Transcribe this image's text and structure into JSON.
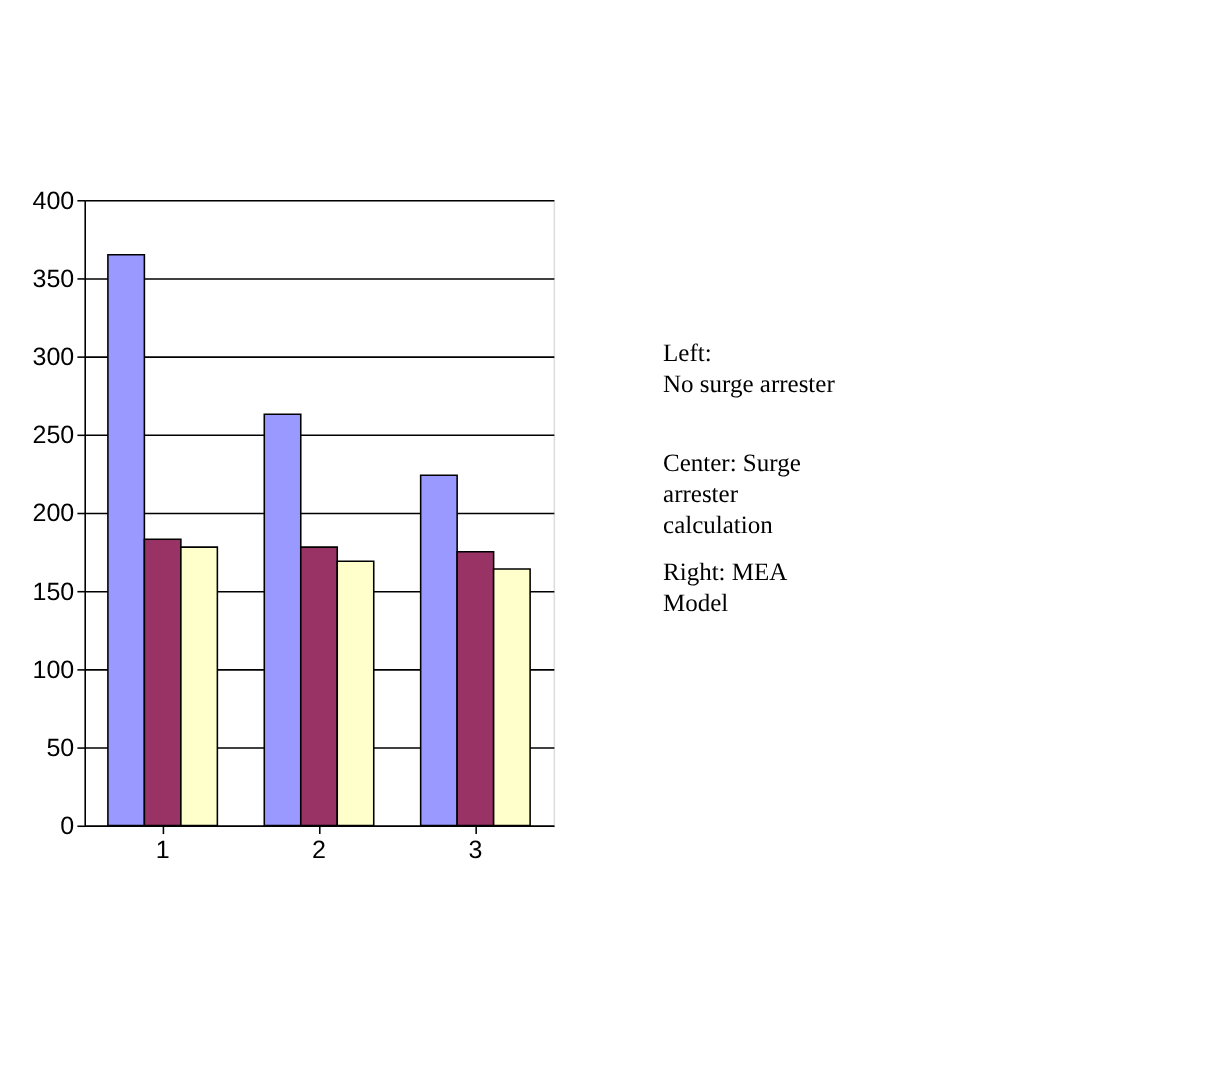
{
  "chart_data": {
    "type": "bar",
    "categories": [
      "1",
      "2",
      "3"
    ],
    "series": [
      {
        "color": "#9999ff",
        "values": [
          365,
          263,
          224
        ]
      },
      {
        "color": "#993366",
        "values": [
          183,
          178,
          175
        ]
      },
      {
        "color": "#ffffcc",
        "values": [
          178,
          169,
          164
        ]
      }
    ],
    "ylim": [
      0,
      400
    ],
    "yticks": [
      0,
      50,
      100,
      150,
      200,
      250,
      300,
      350,
      400
    ],
    "grid": "y",
    "annotations": [
      "Left:\nNo surge arrester",
      "Center: Surge\narrester\ncalculation",
      "Right: MEA\nModel"
    ]
  }
}
